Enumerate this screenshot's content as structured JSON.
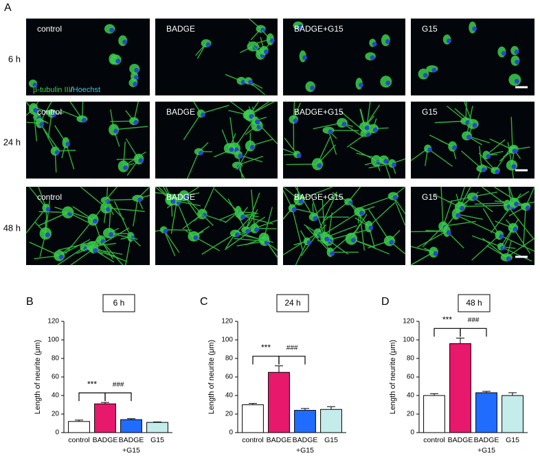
{
  "figure": {
    "panel_label": "A",
    "rows": [
      "6 h",
      "24 h",
      "48 h"
    ],
    "columns": [
      "control",
      "BADGE",
      "BADGE+G15",
      "G15"
    ],
    "stain_label": [
      "β-tubulin III",
      "/",
      "Hoechst"
    ]
  },
  "chart_data": [
    {
      "type": "bar",
      "panel_label": "B",
      "title": "6 h",
      "y_label": "Length of neurite (μm)",
      "categories": [
        "control",
        "BADGE",
        "BADGE +G15",
        "G15"
      ],
      "values": [
        12,
        31,
        14,
        11
      ],
      "errors": [
        1.5,
        1.5,
        1,
        0.5
      ],
      "colors": [
        "#ffffff",
        "#e8186d",
        "#1f6cff",
        "#c4ecea"
      ],
      "ylim": [
        0,
        120
      ],
      "yticks": [
        0,
        20,
        40,
        60,
        80,
        100,
        120
      ],
      "annotations": [
        "***",
        "###"
      ]
    },
    {
      "type": "bar",
      "panel_label": "C",
      "title": "24 h",
      "y_label": "Length of neurite (μm)",
      "categories": [
        "control",
        "BADGE",
        "BADGE +G15",
        "G15"
      ],
      "values": [
        30,
        65,
        24,
        25
      ],
      "errors": [
        1.5,
        7,
        2,
        3
      ],
      "colors": [
        "#ffffff",
        "#e8186d",
        "#1f6cff",
        "#c4ecea"
      ],
      "ylim": [
        0,
        120
      ],
      "yticks": [
        0,
        20,
        40,
        60,
        80,
        100,
        120
      ],
      "annotations": [
        "***",
        "###"
      ]
    },
    {
      "type": "bar",
      "panel_label": "D",
      "title": "48 h",
      "y_label": "Length of neurite (μm)",
      "categories": [
        "control",
        "BADGE",
        "BADGE +G15",
        "G15"
      ],
      "values": [
        40,
        96,
        43,
        40
      ],
      "errors": [
        2,
        6,
        1.5,
        3
      ],
      "colors": [
        "#ffffff",
        "#e8186d",
        "#1f6cff",
        "#c4ecea"
      ],
      "ylim": [
        0,
        120
      ],
      "yticks": [
        0,
        20,
        40,
        60,
        80,
        100,
        120
      ],
      "annotations": [
        "***",
        "###"
      ]
    }
  ]
}
